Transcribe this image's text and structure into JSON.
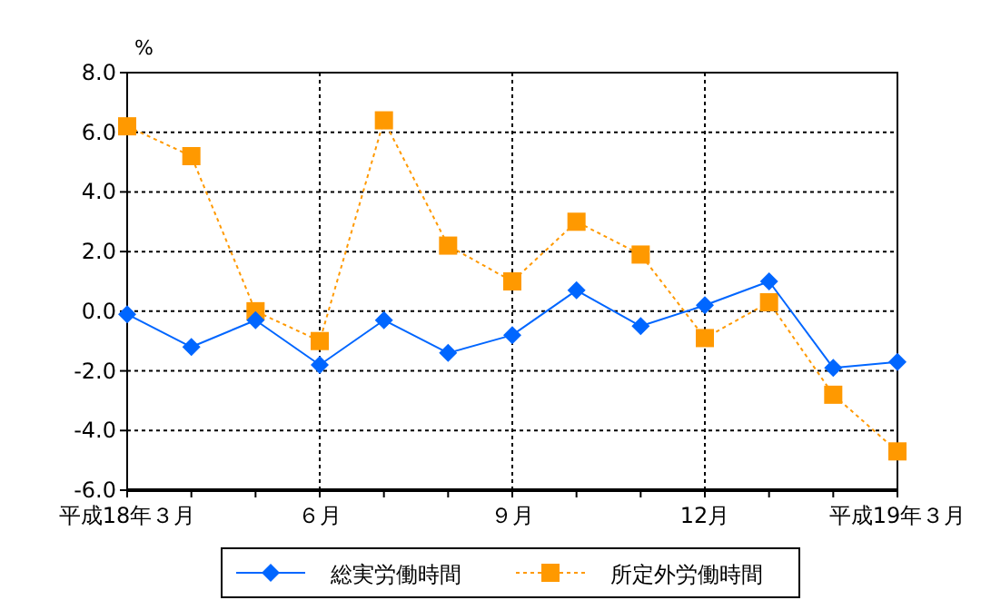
{
  "chart_data": {
    "type": "line",
    "ylabel": "%",
    "categories": [
      "平成18年３月",
      null,
      null,
      "６月",
      null,
      null,
      "９月",
      null,
      null,
      "12月",
      null,
      null,
      "平成19年３月"
    ],
    "ylim": [
      -6,
      8
    ],
    "yticks": [
      {
        "value": -6,
        "label": "-6.0"
      },
      {
        "value": -4,
        "label": "-4.0"
      },
      {
        "value": -2,
        "label": "-2.0"
      },
      {
        "value": 0,
        "label": "0.0"
      },
      {
        "value": 2,
        "label": "2.0"
      },
      {
        "value": 4,
        "label": "4.0"
      },
      {
        "value": 6,
        "label": "6.0"
      },
      {
        "value": 8,
        "label": "8.0"
      }
    ],
    "grid": true,
    "legend": "bottom",
    "series": [
      {
        "name": "総実労働時間",
        "color": "#0066ff",
        "marker": "diamond",
        "line_style": "solid",
        "values": [
          -0.1,
          -1.2,
          -0.3,
          -1.8,
          -0.3,
          -1.4,
          -0.8,
          0.7,
          -0.5,
          0.2,
          1.0,
          -1.9,
          -1.7
        ]
      },
      {
        "name": "所定外労働時間",
        "color": "#ff9900",
        "marker": "square",
        "line_style": "dotted",
        "values": [
          6.2,
          5.2,
          0.0,
          -1.0,
          6.4,
          2.2,
          1.0,
          3.0,
          1.9,
          -0.9,
          0.3,
          -2.8,
          -4.7
        ]
      }
    ]
  }
}
